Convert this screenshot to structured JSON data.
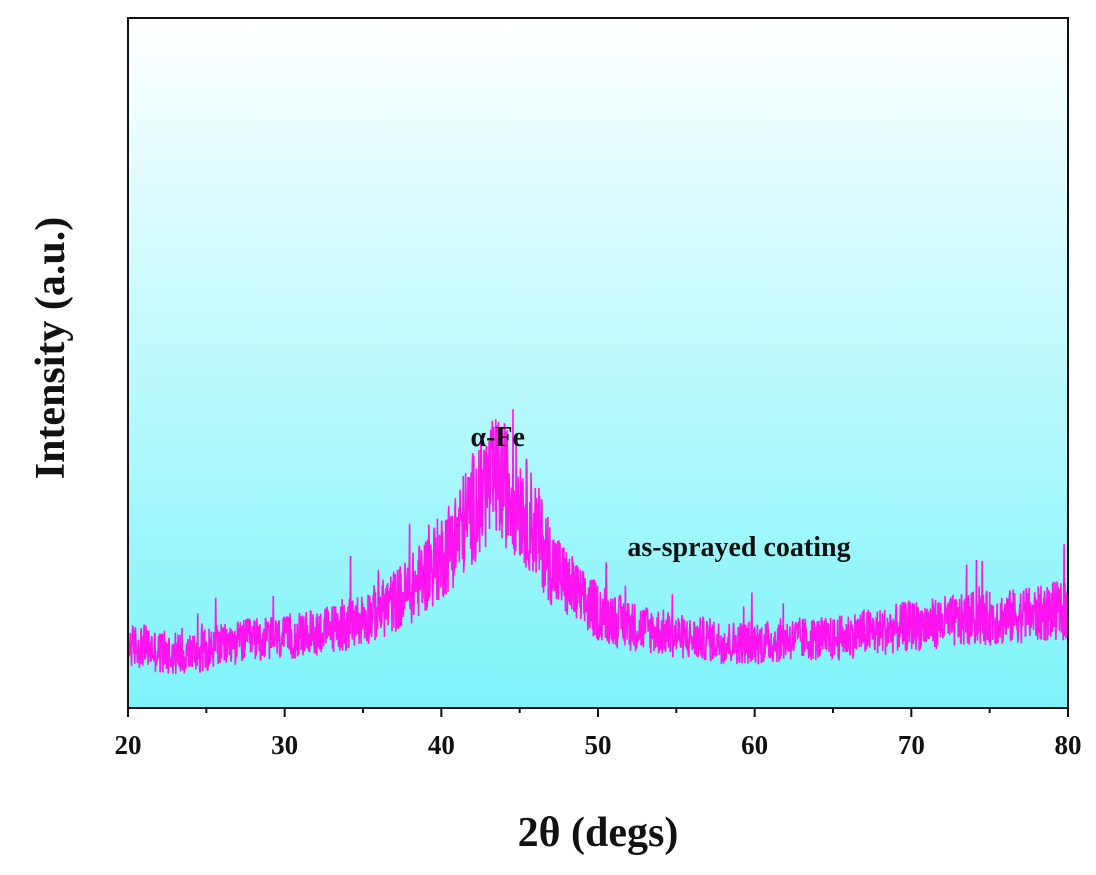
{
  "chart_data": {
    "type": "line",
    "title": "",
    "xlabel": "2θ (degs)",
    "ylabel": "Intensity (a.u.)",
    "xlim": [
      20,
      80
    ],
    "ylim": [
      0,
      100
    ],
    "x_ticks": [
      20,
      30,
      40,
      50,
      60,
      70,
      80
    ],
    "x_tick_labels": [
      "20",
      "30",
      "40",
      "50",
      "60",
      "70",
      "80"
    ],
    "y_tick_labels_shown": false,
    "grid": false,
    "legend": "none",
    "colors": {
      "series": "#ff14f0",
      "background_top": "#ffffff",
      "background_bottom": "#7df4fa"
    },
    "annotations": [
      {
        "text": "α-Fe",
        "x": 43.6,
        "y": 38
      },
      {
        "text": "as-sprayed coating",
        "x": 59,
        "y": 22
      }
    ],
    "series": [
      {
        "points": [
          [
            20,
            9
          ],
          [
            21,
            9
          ],
          [
            22,
            8
          ],
          [
            23,
            8
          ],
          [
            24,
            8
          ],
          [
            25,
            8.5
          ],
          [
            26,
            9
          ],
          [
            27,
            9.5
          ],
          [
            28,
            10
          ],
          [
            29,
            10
          ],
          [
            30,
            10
          ],
          [
            31,
            10.5
          ],
          [
            32,
            11
          ],
          [
            33,
            11.5
          ],
          [
            34,
            12
          ],
          [
            35,
            13
          ],
          [
            36,
            14
          ],
          [
            37,
            15.5
          ],
          [
            38,
            17
          ],
          [
            39,
            19.5
          ],
          [
            40,
            22
          ],
          [
            41,
            25
          ],
          [
            42,
            29
          ],
          [
            43,
            32
          ],
          [
            43.5,
            33
          ],
          [
            44,
            32.5
          ],
          [
            45,
            30
          ],
          [
            46,
            26
          ],
          [
            47,
            21
          ],
          [
            48,
            18
          ],
          [
            49,
            15.5
          ],
          [
            50,
            14
          ],
          [
            51,
            13
          ],
          [
            52,
            12
          ],
          [
            53,
            11.5
          ],
          [
            54,
            11
          ],
          [
            55,
            10.5
          ],
          [
            56,
            10
          ],
          [
            57,
            10
          ],
          [
            58,
            9.5
          ],
          [
            59,
            9.5
          ],
          [
            60,
            9.5
          ],
          [
            61,
            9.5
          ],
          [
            62,
            10
          ],
          [
            63,
            10
          ],
          [
            64,
            10
          ],
          [
            65,
            10
          ],
          [
            66,
            10.5
          ],
          [
            67,
            11
          ],
          [
            68,
            11
          ],
          [
            69,
            11.5
          ],
          [
            70,
            12
          ],
          [
            71,
            12
          ],
          [
            72,
            12.5
          ],
          [
            73,
            12.5
          ],
          [
            74,
            13
          ],
          [
            75,
            13
          ],
          [
            76,
            13
          ],
          [
            77,
            13.5
          ],
          [
            78,
            13.5
          ],
          [
            79,
            14
          ],
          [
            80,
            14
          ]
        ],
        "noise_amplitude": 3.2
      }
    ]
  }
}
